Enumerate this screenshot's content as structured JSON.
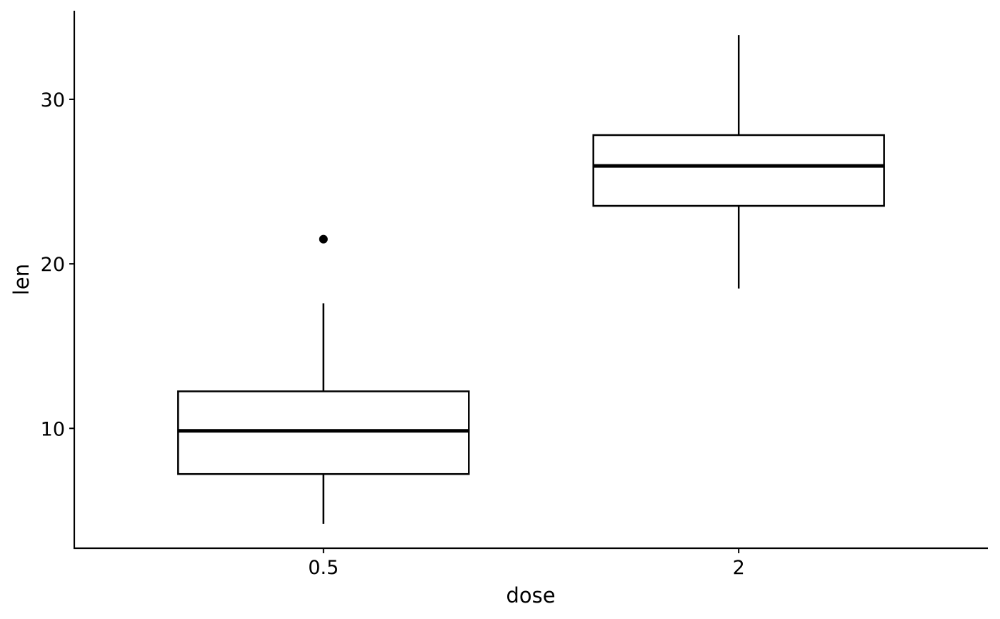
{
  "chart_data": {
    "type": "box",
    "x_label": "dose",
    "y_label": "len",
    "categories": [
      "0.5",
      "2"
    ],
    "min": [
      4.2,
      18.5
    ],
    "q1": [
      7.225,
      23.525
    ],
    "median": [
      9.85,
      25.95
    ],
    "q3": [
      12.25,
      27.825
    ],
    "max": [
      17.6,
      33.9
    ],
    "outliers": [
      [
        21.5
      ],
      []
    ],
    "color": "#000000",
    "fill": "#ffffff",
    "ylim": [
      2.715,
      35.385
    ],
    "yticks": [
      10,
      20,
      30
    ],
    "grid": false
  }
}
